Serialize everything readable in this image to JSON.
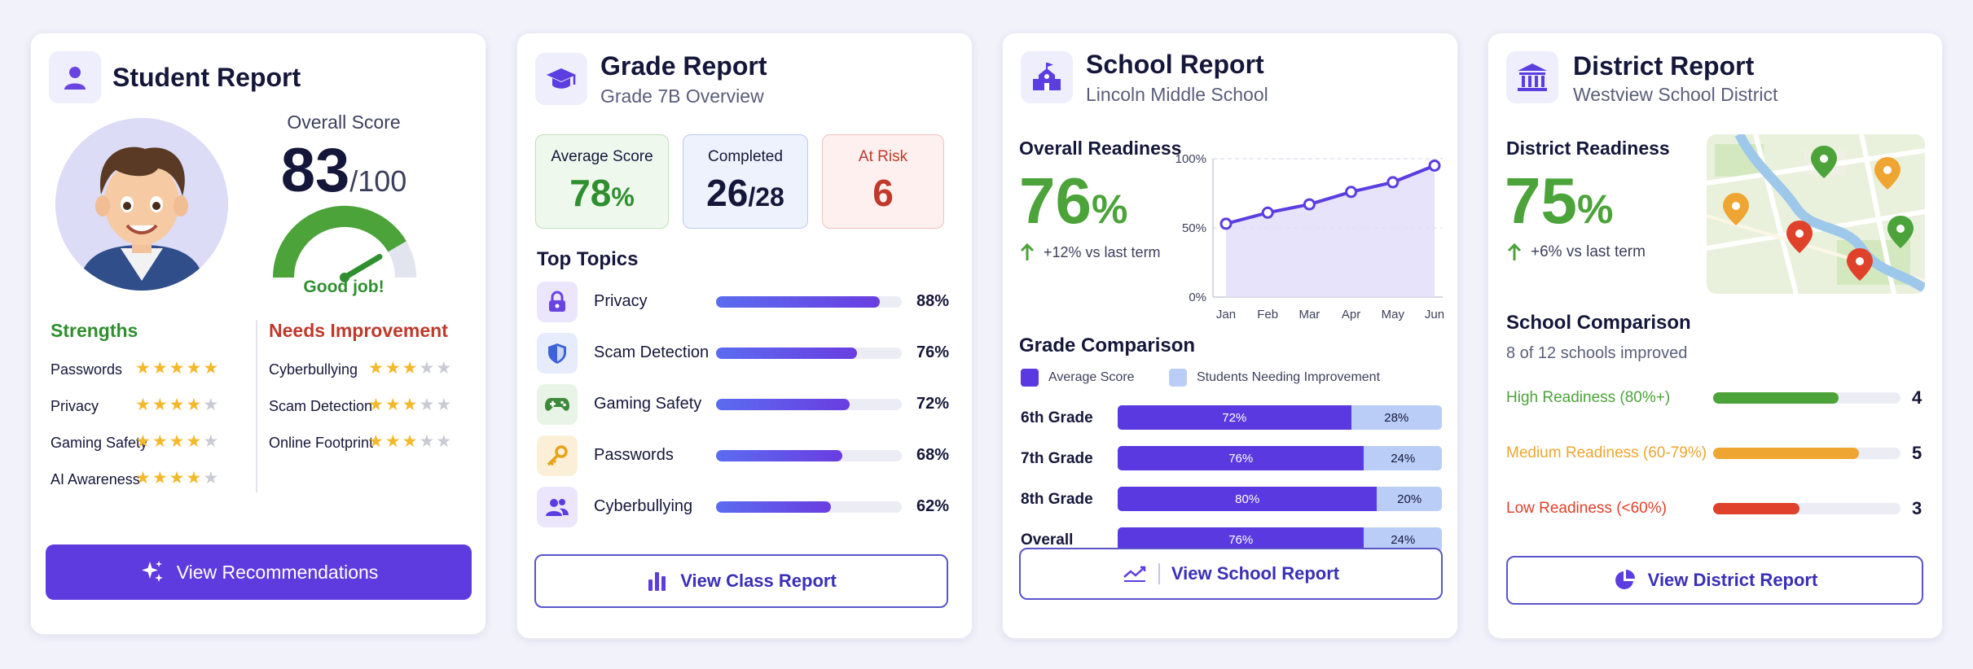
{
  "student": {
    "title": "Student Report",
    "score_label": "Overall Score",
    "score": 83,
    "score_value": "83",
    "score_max": "/100",
    "gauge_message": "Good job!",
    "strengths_heading": "Strengths",
    "strengths": [
      {
        "name": "Passwords",
        "stars": 5
      },
      {
        "name": "Privacy",
        "stars": 4
      },
      {
        "name": "Gaming Safety",
        "stars": 4
      },
      {
        "name": "AI Awareness",
        "stars": 4
      }
    ],
    "improvement_heading": "Needs Improvement",
    "improvements": [
      {
        "name": "Cyberbullying",
        "stars": 3
      },
      {
        "name": "Scam Detection",
        "stars": 3
      },
      {
        "name": "Online Footprint",
        "stars": 3
      }
    ],
    "button_label": "View Recommendations"
  },
  "grade": {
    "title": "Grade Report",
    "subtitle": "Grade 7B Overview",
    "stats": [
      {
        "label": "Average Score",
        "value": "78",
        "suffix": "%",
        "color": "#2f8f2f"
      },
      {
        "label": "Completed",
        "value": "26",
        "suffix": "/28",
        "color": "#15173a"
      },
      {
        "label": "At Risk",
        "value": "6",
        "suffix": "",
        "color": "#c0392b"
      }
    ],
    "topics_title": "Top Topics",
    "topics": [
      {
        "name": "Privacy",
        "pct": 88,
        "pct_label": "88%",
        "icon": "lock-icon"
      },
      {
        "name": "Scam Detection",
        "pct": 76,
        "pct_label": "76%",
        "icon": "shield-icon"
      },
      {
        "name": "Gaming Safety",
        "pct": 72,
        "pct_label": "72%",
        "icon": "gamepad-icon"
      },
      {
        "name": "Passwords",
        "pct": 68,
        "pct_label": "68%",
        "icon": "key-icon"
      },
      {
        "name": "Cyberbullying",
        "pct": 62,
        "pct_label": "62%",
        "icon": "people-icon"
      }
    ],
    "button_label": "View Class Report"
  },
  "school": {
    "title": "School Report",
    "subtitle": "Lincoln Middle School",
    "readiness_label": "Overall Readiness",
    "readiness_value": "76",
    "readiness_suffix": "%",
    "trend_text": "+12% vs last term",
    "chart_data": {
      "type": "area",
      "x": [
        "Jan",
        "Feb",
        "Mar",
        "Apr",
        "May",
        "Jun"
      ],
      "y": [
        53,
        61,
        67,
        76,
        83,
        95
      ],
      "ylim": [
        0,
        100
      ],
      "yticks": [
        "100%",
        "50%",
        "0%"
      ],
      "grid": true
    },
    "comparison_title": "Grade Comparison",
    "legend_avg": "Average Score",
    "legend_need": "Students Needing Improvement",
    "grades": [
      {
        "name": "6th Grade",
        "avg": 72,
        "avg_label": "72%",
        "need": 28,
        "need_label": "28%"
      },
      {
        "name": "7th Grade",
        "avg": 76,
        "avg_label": "76%",
        "need": 24,
        "need_label": "24%"
      },
      {
        "name": "8th Grade",
        "avg": 80,
        "avg_label": "80%",
        "need": 20,
        "need_label": "20%"
      },
      {
        "name": "Overall",
        "avg": 76,
        "avg_label": "76%",
        "need": 24,
        "need_label": "24%"
      }
    ],
    "button_label": "View School Report"
  },
  "district": {
    "title": "District Report",
    "subtitle": "Westview School District",
    "readiness_label": "District Readiness",
    "readiness_value": "75",
    "readiness_suffix": "%",
    "trend_text": "+6% vs last term",
    "comparison_title": "School Comparison",
    "comparison_sub": "8 of 12 schools improved",
    "levels": [
      {
        "label": "High Readiness (80%+)",
        "count": "4",
        "fill": 0.67,
        "color": "#4ba33a"
      },
      {
        "label": "Medium Readiness (60-79%)",
        "count": "5",
        "fill": 0.78,
        "color": "#efa531"
      },
      {
        "label": "Low Readiness (<60%)",
        "count": "3",
        "fill": 0.46,
        "color": "#e0412b"
      }
    ],
    "button_label": "View District Report"
  }
}
